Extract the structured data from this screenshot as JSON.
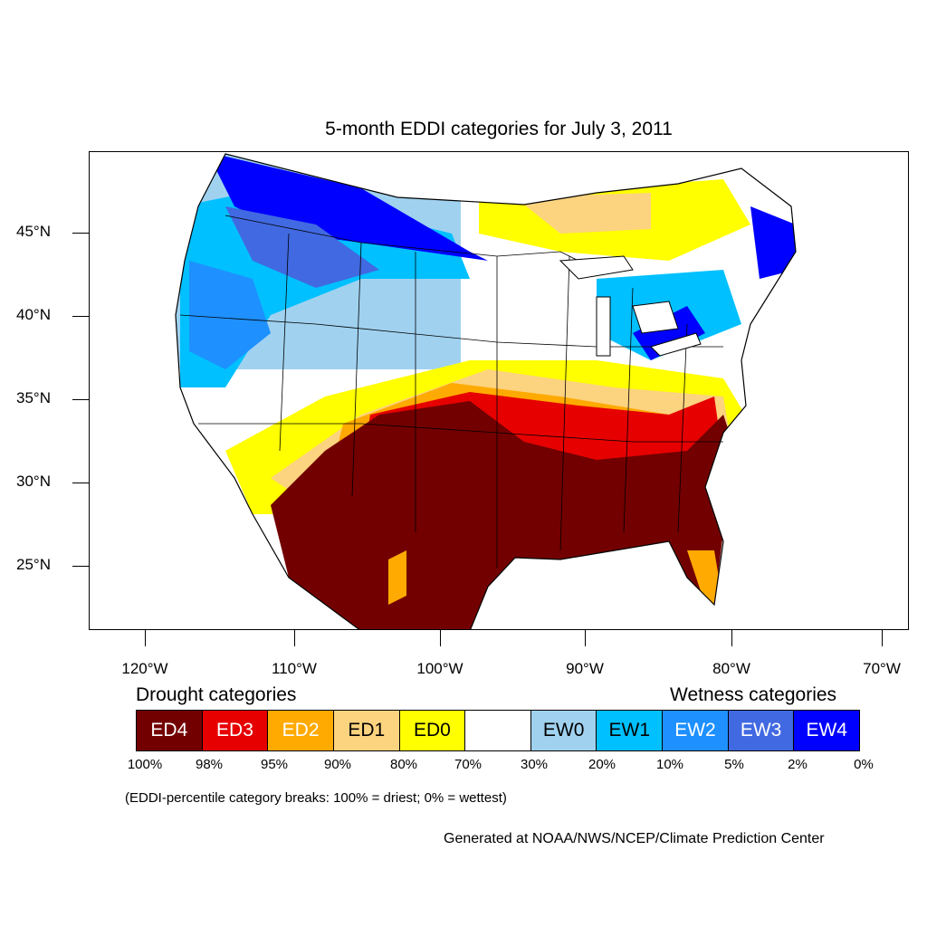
{
  "title": "5-month EDDI categories for July 3, 2011",
  "axes": {
    "lat_labels": [
      "45°N",
      "40°N",
      "35°N",
      "30°N",
      "25°N"
    ],
    "lon_labels": [
      "120°W",
      "110°W",
      "100°W",
      "90°W",
      "80°W",
      "70°W"
    ]
  },
  "legend": {
    "drought_heading": "Drought categories",
    "wetness_heading": "Wetness categories",
    "categories": [
      {
        "label": "ED4",
        "color": "#730000",
        "text_color": "#ffffff"
      },
      {
        "label": "ED3",
        "color": "#e60000",
        "text_color": "#ffffff"
      },
      {
        "label": "ED2",
        "color": "#ffaa00",
        "text_color": "#ffffff"
      },
      {
        "label": "ED1",
        "color": "#fcd37f",
        "text_color": "#000000"
      },
      {
        "label": "ED0",
        "color": "#ffff00",
        "text_color": "#000000"
      },
      {
        "label": "",
        "color": "#ffffff",
        "text_color": "#000000"
      },
      {
        "label": "EW0",
        "color": "#a0d2f0",
        "text_color": "#000000"
      },
      {
        "label": "EW1",
        "color": "#00c0ff",
        "text_color": "#000000"
      },
      {
        "label": "EW2",
        "color": "#1e90ff",
        "text_color": "#ffffff"
      },
      {
        "label": "EW3",
        "color": "#4169e1",
        "text_color": "#ffffff"
      },
      {
        "label": "EW4",
        "color": "#0000ff",
        "text_color": "#ffffff"
      }
    ],
    "breaks": [
      "100%",
      "98%",
      "95%",
      "90%",
      "80%",
      "70%",
      "30%",
      "20%",
      "10%",
      "5%",
      "2%",
      "0%"
    ]
  },
  "note": "(EDDI-percentile category breaks: 100% = driest; 0% = wettest)",
  "credit": "Generated at NOAA/NWS/NCEP/Climate Prediction Center"
}
